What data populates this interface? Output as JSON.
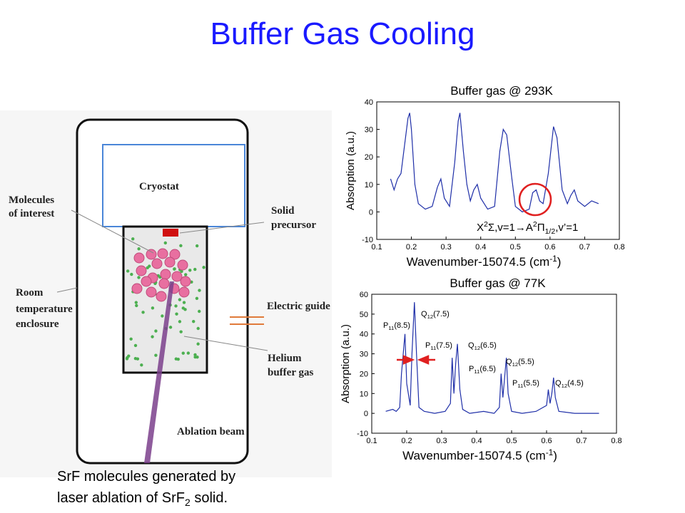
{
  "title": "Buffer Gas Cooling",
  "diagram": {
    "cryostat": "Cryostat",
    "molecules_of_interest": [
      "Molecules",
      "of interest"
    ],
    "solid_precursor": [
      "Solid",
      "precursor"
    ],
    "room_temperature_enclosure": [
      "Room",
      "temperature",
      "enclosure"
    ],
    "electric_guide": "Electric guide",
    "helium_buffer_gas": [
      "Helium",
      "buffer gas"
    ],
    "ablation_beam": "Ablation beam"
  },
  "caption": {
    "line1": "SrF molecules generated by",
    "line2": [
      "laser ablation of SrF",
      "2",
      " solid."
    ]
  },
  "chart_data": [
    {
      "type": "line",
      "title": "Buffer gas @ 293K",
      "x_label": [
        "Wavenumber-15074.5 (cm",
        "-1",
        ")"
      ],
      "y_label": "Absorption (a.u.)",
      "annotation": [
        "X",
        "2",
        "Σ,v=1→A",
        "2",
        "Π",
        "1/2",
        ",v’=1"
      ],
      "xlim": [
        0.1,
        0.8
      ],
      "xticks": [
        0.1,
        0.2,
        0.3,
        0.4,
        0.5,
        0.6,
        0.7,
        0.8
      ],
      "ylim": [
        -10,
        40
      ],
      "yticks": [
        -10,
        0,
        10,
        20,
        30,
        40
      ],
      "x": [
        0.14,
        0.15,
        0.16,
        0.17,
        0.18,
        0.19,
        0.195,
        0.2,
        0.21,
        0.22,
        0.24,
        0.26,
        0.275,
        0.285,
        0.295,
        0.31,
        0.325,
        0.335,
        0.34,
        0.35,
        0.36,
        0.37,
        0.38,
        0.39,
        0.4,
        0.42,
        0.44,
        0.455,
        0.465,
        0.475,
        0.49,
        0.5,
        0.52,
        0.54,
        0.55,
        0.56,
        0.57,
        0.58,
        0.595,
        0.61,
        0.62,
        0.635,
        0.65,
        0.66,
        0.67,
        0.68,
        0.7,
        0.72,
        0.74
      ],
      "series": [
        {
          "color": "#1f2fa8",
          "values": [
            12,
            8,
            12,
            14,
            24,
            34,
            36,
            30,
            10,
            3,
            1,
            2,
            9,
            12,
            5,
            2,
            18,
            33,
            36,
            22,
            10,
            4,
            8,
            10,
            5,
            1,
            2,
            22,
            30,
            28,
            12,
            2,
            0,
            1,
            7,
            8,
            4,
            3,
            14,
            31,
            27,
            8,
            3,
            6,
            8,
            4,
            2,
            4,
            3
          ]
        }
      ]
    },
    {
      "type": "line",
      "title": "Buffer gas @ 77K",
      "x_label": [
        "Wavenumber-15074.5 (cm",
        "-1",
        ")"
      ],
      "y_label": "Absorption (a.u.)",
      "peak_labels": [
        [
          "P",
          "11",
          "(8.5)"
        ],
        [
          "Q",
          "12",
          "(7.5)"
        ],
        [
          "P",
          "11",
          "(7.5)"
        ],
        [
          "Q",
          "12",
          "(6.5)"
        ],
        [
          "P",
          "11",
          "(6.5)"
        ],
        [
          "Q",
          "12",
          "(5.5)"
        ],
        [
          "P",
          "11",
          "(5.5)"
        ],
        [
          "Q",
          "12",
          "(4.5)"
        ]
      ],
      "xlim": [
        0.1,
        0.8
      ],
      "xticks": [
        0.1,
        0.2,
        0.3,
        0.4,
        0.5,
        0.6,
        0.7,
        0.8
      ],
      "ylim": [
        -10,
        60
      ],
      "yticks": [
        -10,
        0,
        10,
        20,
        30,
        40,
        50,
        60
      ],
      "x": [
        0.14,
        0.16,
        0.17,
        0.18,
        0.185,
        0.195,
        0.2,
        0.21,
        0.215,
        0.222,
        0.228,
        0.235,
        0.25,
        0.28,
        0.31,
        0.325,
        0.33,
        0.335,
        0.34,
        0.345,
        0.352,
        0.36,
        0.38,
        0.42,
        0.45,
        0.465,
        0.47,
        0.475,
        0.48,
        0.485,
        0.49,
        0.5,
        0.53,
        0.57,
        0.6,
        0.605,
        0.61,
        0.615,
        0.62,
        0.625,
        0.635,
        0.68,
        0.72,
        0.75
      ],
      "series": [
        {
          "color": "#1f2fa8",
          "values": [
            1,
            2,
            1,
            3,
            20,
            40,
            15,
            4,
            30,
            56,
            30,
            3,
            1,
            0,
            1,
            5,
            28,
            10,
            25,
            35,
            12,
            2,
            0,
            1,
            0,
            3,
            20,
            8,
            18,
            28,
            10,
            1,
            0,
            1,
            4,
            12,
            5,
            10,
            18,
            8,
            1,
            0,
            0,
            0
          ]
        }
      ]
    }
  ]
}
